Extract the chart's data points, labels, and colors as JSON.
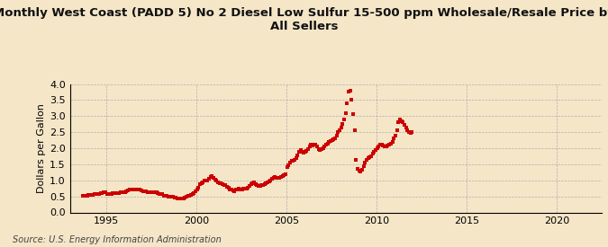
{
  "title": "Monthly West Coast (PADD 5) No 2 Diesel Low Sulfur 15-500 ppm Wholesale/Resale Price by\nAll Sellers",
  "ylabel": "Dollars per Gallon",
  "source": "Source: U.S. Energy Information Administration",
  "bg_color": "#f5e6c8",
  "dot_color": "#cc0000",
  "xlim": [
    1993.0,
    2022.5
  ],
  "ylim": [
    0.0,
    4.0
  ],
  "xticks": [
    1995,
    2000,
    2005,
    2010,
    2015,
    2020
  ],
  "yticks": [
    0.0,
    0.5,
    1.0,
    1.5,
    2.0,
    2.5,
    3.0,
    3.5,
    4.0
  ],
  "monthly_data": [
    [
      1993,
      9,
      0.52
    ],
    [
      1993,
      10,
      0.51
    ],
    [
      1993,
      11,
      0.52
    ],
    [
      1993,
      12,
      0.53
    ],
    [
      1994,
      1,
      0.54
    ],
    [
      1994,
      2,
      0.55
    ],
    [
      1994,
      3,
      0.54
    ],
    [
      1994,
      4,
      0.55
    ],
    [
      1994,
      5,
      0.56
    ],
    [
      1994,
      6,
      0.57
    ],
    [
      1994,
      7,
      0.58
    ],
    [
      1994,
      8,
      0.58
    ],
    [
      1994,
      9,
      0.59
    ],
    [
      1994,
      10,
      0.6
    ],
    [
      1994,
      11,
      0.62
    ],
    [
      1994,
      12,
      0.62
    ],
    [
      1995,
      1,
      0.58
    ],
    [
      1995,
      2,
      0.57
    ],
    [
      1995,
      3,
      0.57
    ],
    [
      1995,
      4,
      0.58
    ],
    [
      1995,
      5,
      0.6
    ],
    [
      1995,
      6,
      0.61
    ],
    [
      1995,
      7,
      0.6
    ],
    [
      1995,
      8,
      0.61
    ],
    [
      1995,
      9,
      0.61
    ],
    [
      1995,
      10,
      0.62
    ],
    [
      1995,
      11,
      0.64
    ],
    [
      1995,
      12,
      0.64
    ],
    [
      1996,
      1,
      0.64
    ],
    [
      1996,
      2,
      0.66
    ],
    [
      1996,
      3,
      0.68
    ],
    [
      1996,
      4,
      0.7
    ],
    [
      1996,
      5,
      0.72
    ],
    [
      1996,
      6,
      0.72
    ],
    [
      1996,
      7,
      0.71
    ],
    [
      1996,
      8,
      0.72
    ],
    [
      1996,
      9,
      0.72
    ],
    [
      1996,
      10,
      0.72
    ],
    [
      1996,
      11,
      0.7
    ],
    [
      1996,
      12,
      0.68
    ],
    [
      1997,
      1,
      0.67
    ],
    [
      1997,
      2,
      0.67
    ],
    [
      1997,
      3,
      0.65
    ],
    [
      1997,
      4,
      0.64
    ],
    [
      1997,
      5,
      0.63
    ],
    [
      1997,
      6,
      0.62
    ],
    [
      1997,
      7,
      0.62
    ],
    [
      1997,
      8,
      0.63
    ],
    [
      1997,
      9,
      0.63
    ],
    [
      1997,
      10,
      0.62
    ],
    [
      1997,
      11,
      0.6
    ],
    [
      1997,
      12,
      0.58
    ],
    [
      1998,
      1,
      0.57
    ],
    [
      1998,
      2,
      0.56
    ],
    [
      1998,
      3,
      0.53
    ],
    [
      1998,
      4,
      0.52
    ],
    [
      1998,
      5,
      0.51
    ],
    [
      1998,
      6,
      0.5
    ],
    [
      1998,
      7,
      0.5
    ],
    [
      1998,
      8,
      0.5
    ],
    [
      1998,
      9,
      0.49
    ],
    [
      1998,
      10,
      0.47
    ],
    [
      1998,
      11,
      0.45
    ],
    [
      1998,
      12,
      0.43
    ],
    [
      1999,
      1,
      0.43
    ],
    [
      1999,
      2,
      0.43
    ],
    [
      1999,
      3,
      0.43
    ],
    [
      1999,
      4,
      0.44
    ],
    [
      1999,
      5,
      0.46
    ],
    [
      1999,
      6,
      0.49
    ],
    [
      1999,
      7,
      0.51
    ],
    [
      1999,
      8,
      0.53
    ],
    [
      1999,
      9,
      0.55
    ],
    [
      1999,
      10,
      0.57
    ],
    [
      1999,
      11,
      0.6
    ],
    [
      1999,
      12,
      0.65
    ],
    [
      2000,
      1,
      0.72
    ],
    [
      2000,
      2,
      0.78
    ],
    [
      2000,
      3,
      0.88
    ],
    [
      2000,
      4,
      0.9
    ],
    [
      2000,
      5,
      0.95
    ],
    [
      2000,
      6,
      0.98
    ],
    [
      2000,
      7,
      1.0
    ],
    [
      2000,
      8,
      1.0
    ],
    [
      2000,
      9,
      1.05
    ],
    [
      2000,
      10,
      1.1
    ],
    [
      2000,
      11,
      1.12
    ],
    [
      2000,
      12,
      1.08
    ],
    [
      2001,
      1,
      1.02
    ],
    [
      2001,
      2,
      0.98
    ],
    [
      2001,
      3,
      0.95
    ],
    [
      2001,
      4,
      0.92
    ],
    [
      2001,
      5,
      0.9
    ],
    [
      2001,
      6,
      0.88
    ],
    [
      2001,
      7,
      0.85
    ],
    [
      2001,
      8,
      0.84
    ],
    [
      2001,
      9,
      0.8
    ],
    [
      2001,
      10,
      0.76
    ],
    [
      2001,
      11,
      0.72
    ],
    [
      2001,
      12,
      0.7
    ],
    [
      2002,
      1,
      0.68
    ],
    [
      2002,
      2,
      0.67
    ],
    [
      2002,
      3,
      0.7
    ],
    [
      2002,
      4,
      0.72
    ],
    [
      2002,
      5,
      0.73
    ],
    [
      2002,
      6,
      0.72
    ],
    [
      2002,
      7,
      0.72
    ],
    [
      2002,
      8,
      0.73
    ],
    [
      2002,
      9,
      0.73
    ],
    [
      2002,
      10,
      0.75
    ],
    [
      2002,
      11,
      0.78
    ],
    [
      2002,
      12,
      0.82
    ],
    [
      2003,
      1,
      0.87
    ],
    [
      2003,
      2,
      0.92
    ],
    [
      2003,
      3,
      0.95
    ],
    [
      2003,
      4,
      0.88
    ],
    [
      2003,
      5,
      0.85
    ],
    [
      2003,
      6,
      0.83
    ],
    [
      2003,
      7,
      0.82
    ],
    [
      2003,
      8,
      0.84
    ],
    [
      2003,
      9,
      0.86
    ],
    [
      2003,
      10,
      0.88
    ],
    [
      2003,
      11,
      0.9
    ],
    [
      2003,
      12,
      0.93
    ],
    [
      2004,
      1,
      0.97
    ],
    [
      2004,
      2,
      1.0
    ],
    [
      2004,
      3,
      1.05
    ],
    [
      2004,
      4,
      1.08
    ],
    [
      2004,
      5,
      1.1
    ],
    [
      2004,
      6,
      1.08
    ],
    [
      2004,
      7,
      1.07
    ],
    [
      2004,
      8,
      1.08
    ],
    [
      2004,
      9,
      1.1
    ],
    [
      2004,
      10,
      1.12
    ],
    [
      2004,
      11,
      1.15
    ],
    [
      2004,
      12,
      1.18
    ],
    [
      2005,
      1,
      1.42
    ],
    [
      2005,
      2,
      1.48
    ],
    [
      2005,
      3,
      1.55
    ],
    [
      2005,
      4,
      1.6
    ],
    [
      2005,
      5,
      1.62
    ],
    [
      2005,
      6,
      1.65
    ],
    [
      2005,
      7,
      1.7
    ],
    [
      2005,
      8,
      1.78
    ],
    [
      2005,
      9,
      1.9
    ],
    [
      2005,
      10,
      1.95
    ],
    [
      2005,
      11,
      1.88
    ],
    [
      2005,
      12,
      1.85
    ],
    [
      2006,
      1,
      1.9
    ],
    [
      2006,
      2,
      1.92
    ],
    [
      2006,
      3,
      1.98
    ],
    [
      2006,
      4,
      2.05
    ],
    [
      2006,
      5,
      2.1
    ],
    [
      2006,
      6,
      2.08
    ],
    [
      2006,
      7,
      2.1
    ],
    [
      2006,
      8,
      2.1
    ],
    [
      2006,
      9,
      2.05
    ],
    [
      2006,
      10,
      1.98
    ],
    [
      2006,
      11,
      1.95
    ],
    [
      2006,
      12,
      1.98
    ],
    [
      2007,
      1,
      2.0
    ],
    [
      2007,
      2,
      2.05
    ],
    [
      2007,
      3,
      2.1
    ],
    [
      2007,
      4,
      2.15
    ],
    [
      2007,
      5,
      2.2
    ],
    [
      2007,
      6,
      2.22
    ],
    [
      2007,
      7,
      2.25
    ],
    [
      2007,
      8,
      2.28
    ],
    [
      2007,
      9,
      2.3
    ],
    [
      2007,
      10,
      2.4
    ],
    [
      2007,
      11,
      2.5
    ],
    [
      2007,
      12,
      2.55
    ],
    [
      2008,
      1,
      2.65
    ],
    [
      2008,
      2,
      2.75
    ],
    [
      2008,
      3,
      2.9
    ],
    [
      2008,
      4,
      3.1
    ],
    [
      2008,
      5,
      3.4
    ],
    [
      2008,
      6,
      3.75
    ],
    [
      2008,
      7,
      3.8
    ],
    [
      2008,
      8,
      3.5
    ],
    [
      2008,
      9,
      3.05
    ],
    [
      2008,
      10,
      2.55
    ],
    [
      2008,
      11,
      1.65
    ],
    [
      2008,
      12,
      1.35
    ],
    [
      2009,
      1,
      1.3
    ],
    [
      2009,
      2,
      1.28
    ],
    [
      2009,
      3,
      1.32
    ],
    [
      2009,
      4,
      1.45
    ],
    [
      2009,
      5,
      1.55
    ],
    [
      2009,
      6,
      1.65
    ],
    [
      2009,
      7,
      1.68
    ],
    [
      2009,
      8,
      1.72
    ],
    [
      2009,
      9,
      1.75
    ],
    [
      2009,
      10,
      1.82
    ],
    [
      2009,
      11,
      1.9
    ],
    [
      2009,
      12,
      1.95
    ],
    [
      2010,
      1,
      2.0
    ],
    [
      2010,
      2,
      2.05
    ],
    [
      2010,
      3,
      2.1
    ],
    [
      2010,
      4,
      2.12
    ],
    [
      2010,
      5,
      2.08
    ],
    [
      2010,
      6,
      2.05
    ],
    [
      2010,
      7,
      2.05
    ],
    [
      2010,
      8,
      2.08
    ],
    [
      2010,
      9,
      2.12
    ],
    [
      2010,
      10,
      2.15
    ],
    [
      2010,
      11,
      2.2
    ],
    [
      2010,
      12,
      2.3
    ],
    [
      2011,
      1,
      2.4
    ],
    [
      2011,
      2,
      2.55
    ],
    [
      2011,
      3,
      2.8
    ],
    [
      2011,
      4,
      2.9
    ],
    [
      2011,
      5,
      2.85
    ],
    [
      2011,
      6,
      2.8
    ],
    [
      2011,
      7,
      2.72
    ],
    [
      2011,
      8,
      2.65
    ],
    [
      2011,
      9,
      2.55
    ],
    [
      2011,
      10,
      2.5
    ],
    [
      2011,
      11,
      2.48
    ],
    [
      2011,
      12,
      2.5
    ]
  ]
}
